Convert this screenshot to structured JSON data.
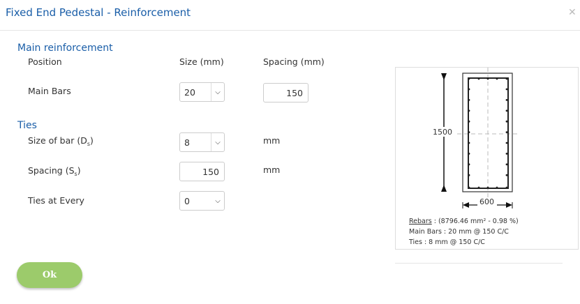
{
  "dialog": {
    "title": "Fixed End Pedestal - Reinforcement",
    "close_icon": "close-icon"
  },
  "main": {
    "heading": "Main reinforcement",
    "col_position": "Position",
    "col_size": "Size (mm)",
    "col_spacing": "Spacing (mm)",
    "row_label": "Main Bars",
    "size_value": "20",
    "spacing_value": "150"
  },
  "ties": {
    "heading": "Ties",
    "size_label": "Size of bar (D",
    "size_sub": "s",
    "size_value": "8",
    "size_unit": "mm",
    "spacing_label": "Spacing (S",
    "spacing_sub": "s",
    "spacing_value": "150",
    "spacing_unit": "mm",
    "every_label": "Ties at Every",
    "every_value": "0"
  },
  "diagram": {
    "height_label": "1500",
    "width_label": "600",
    "rebars_label": "Rebars",
    "rebars_value": " : (8796.46 mm² - 0.98 %)",
    "main_bars_text": "Main Bars : 20 mm @ 150 C/C",
    "ties_text": "Ties : 8 mm @ 150 C/C"
  },
  "buttons": {
    "ok": "Ok"
  },
  "colors": {
    "accent": "#1a5ea8",
    "ok_button": "#9ccb6b"
  }
}
